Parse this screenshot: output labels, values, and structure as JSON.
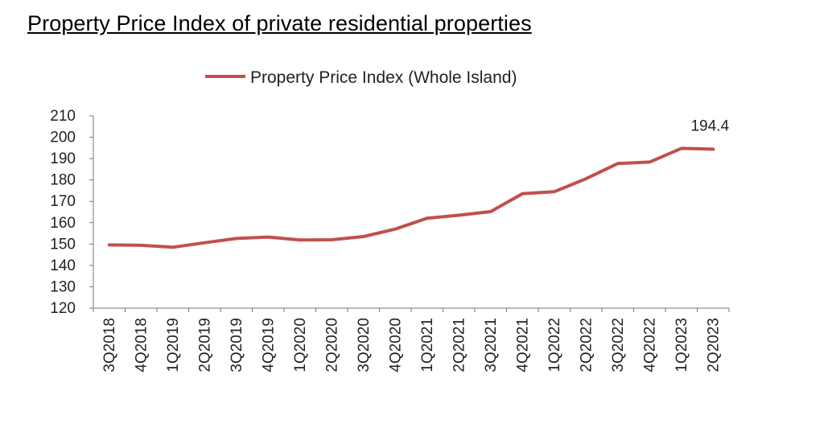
{
  "chart_data": {
    "type": "line",
    "title": "Property Price Index of private residential properties",
    "categories": [
      "3Q2018",
      "4Q2018",
      "1Q2019",
      "2Q2019",
      "3Q2019",
      "4Q2019",
      "1Q2020",
      "2Q2020",
      "3Q2020",
      "4Q2020",
      "1Q2021",
      "2Q2021",
      "3Q2021",
      "4Q2021",
      "1Q2022",
      "2Q2022",
      "3Q2022",
      "4Q2022",
      "1Q2023",
      "2Q2023"
    ],
    "series": [
      {
        "name": "Property Price Index (Whole Island)",
        "color": "#c0504d",
        "values": [
          149.6,
          149.4,
          148.5,
          150.6,
          152.6,
          153.3,
          151.9,
          152.0,
          153.5,
          157.0,
          162.1,
          163.5,
          165.2,
          173.6,
          174.5,
          180.6,
          187.7,
          188.4,
          194.8,
          194.4
        ]
      }
    ],
    "ylim": [
      120,
      210
    ],
    "yticks": [
      "120",
      "130",
      "140",
      "150",
      "160",
      "170",
      "180",
      "190",
      "200",
      "210"
    ],
    "annotations": [
      {
        "text": "194.4",
        "category": "2Q2023"
      }
    ],
    "legend": "top",
    "grid": false
  }
}
